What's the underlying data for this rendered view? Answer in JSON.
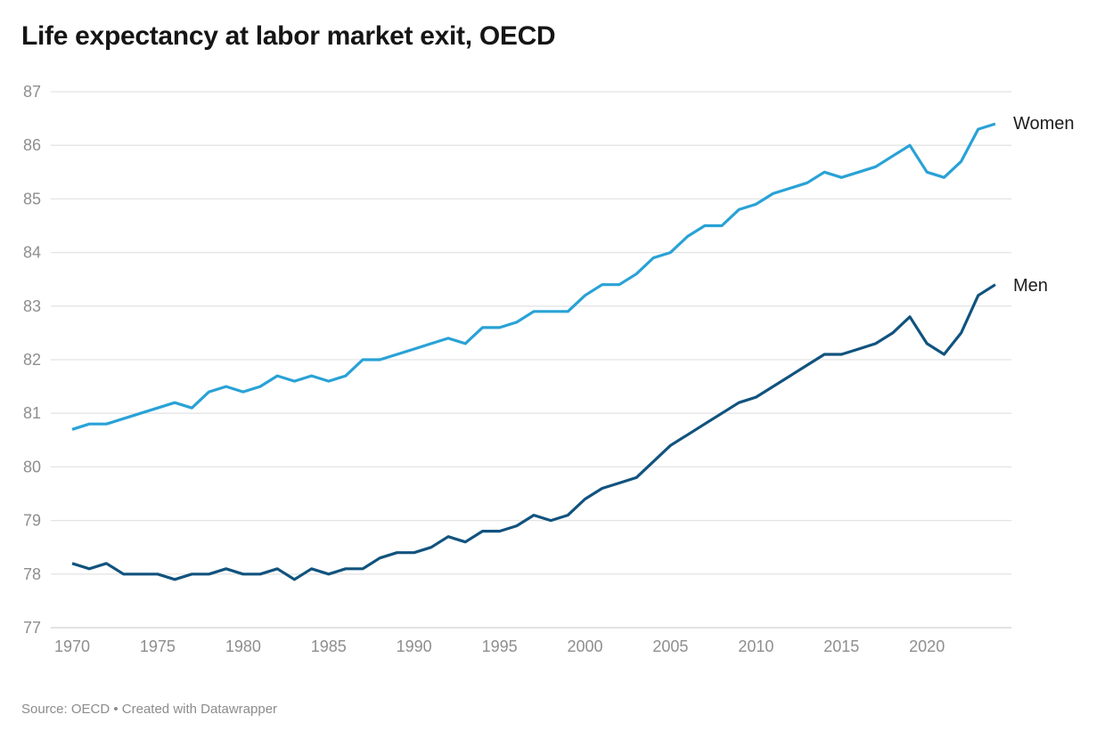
{
  "title": "Life expectancy at labor market exit, OECD",
  "footer": {
    "source_line": "Source: OECD • Created with Datawrapper"
  },
  "colors": {
    "women_line": "#29a2d6",
    "men_line": "#11537e",
    "gridline": "#e4e4e4",
    "baseline": "#d2d2d2",
    "axis_text": "#8e8e8e",
    "title_text": "#151515",
    "series_label_text": "#1d1d1d",
    "background": "#ffffff"
  },
  "chart_data": {
    "type": "line",
    "title": "Life expectancy at labor market exit, OECD",
    "xlabel": "",
    "ylabel": "",
    "ylim": [
      77,
      87
    ],
    "yticks": [
      87,
      86,
      85,
      84,
      83,
      82,
      81,
      80,
      79,
      78,
      77
    ],
    "xticks": [
      1970,
      1975,
      1980,
      1985,
      1990,
      1995,
      2000,
      2005,
      2010,
      2015,
      2020
    ],
    "grid": "horizontal",
    "legend_position": "direct-labels-right",
    "x": [
      1970,
      1971,
      1972,
      1973,
      1974,
      1975,
      1976,
      1977,
      1978,
      1979,
      1980,
      1981,
      1982,
      1983,
      1984,
      1985,
      1986,
      1987,
      1988,
      1989,
      1990,
      1991,
      1992,
      1993,
      1994,
      1995,
      1996,
      1997,
      1998,
      1999,
      2000,
      2001,
      2002,
      2003,
      2004,
      2005,
      2006,
      2007,
      2008,
      2009,
      2010,
      2011,
      2012,
      2013,
      2014,
      2015,
      2016,
      2017,
      2018,
      2019,
      2020,
      2021,
      2022,
      2023,
      2024
    ],
    "series": [
      {
        "name": "Women",
        "color_key": "women_line",
        "values": [
          80.7,
          80.8,
          80.8,
          80.9,
          81.0,
          81.1,
          81.2,
          81.1,
          81.4,
          81.5,
          81.4,
          81.5,
          81.7,
          81.6,
          81.7,
          81.6,
          81.7,
          82.0,
          82.0,
          82.1,
          82.2,
          82.3,
          82.4,
          82.3,
          82.6,
          82.6,
          82.7,
          82.9,
          82.9,
          82.9,
          83.2,
          83.4,
          83.4,
          83.6,
          83.9,
          84.0,
          84.3,
          84.5,
          84.5,
          84.8,
          84.9,
          85.1,
          85.2,
          85.3,
          85.5,
          85.4,
          85.5,
          85.6,
          85.8,
          86.0,
          85.5,
          85.4,
          85.7,
          86.3,
          86.4
        ]
      },
      {
        "name": "Men",
        "color_key": "men_line",
        "values": [
          78.2,
          78.1,
          78.2,
          78.0,
          78.0,
          78.0,
          77.9,
          78.0,
          78.0,
          78.1,
          78.0,
          78.0,
          78.1,
          77.9,
          78.1,
          78.0,
          78.1,
          78.1,
          78.3,
          78.4,
          78.4,
          78.5,
          78.7,
          78.6,
          78.8,
          78.8,
          78.9,
          79.1,
          79.0,
          79.1,
          79.4,
          79.6,
          79.7,
          79.8,
          80.1,
          80.4,
          80.6,
          80.8,
          81.0,
          81.2,
          81.3,
          81.5,
          81.7,
          81.9,
          82.1,
          82.1,
          82.2,
          82.3,
          82.5,
          82.8,
          82.3,
          82.1,
          82.5,
          83.2,
          83.4
        ]
      }
    ]
  }
}
